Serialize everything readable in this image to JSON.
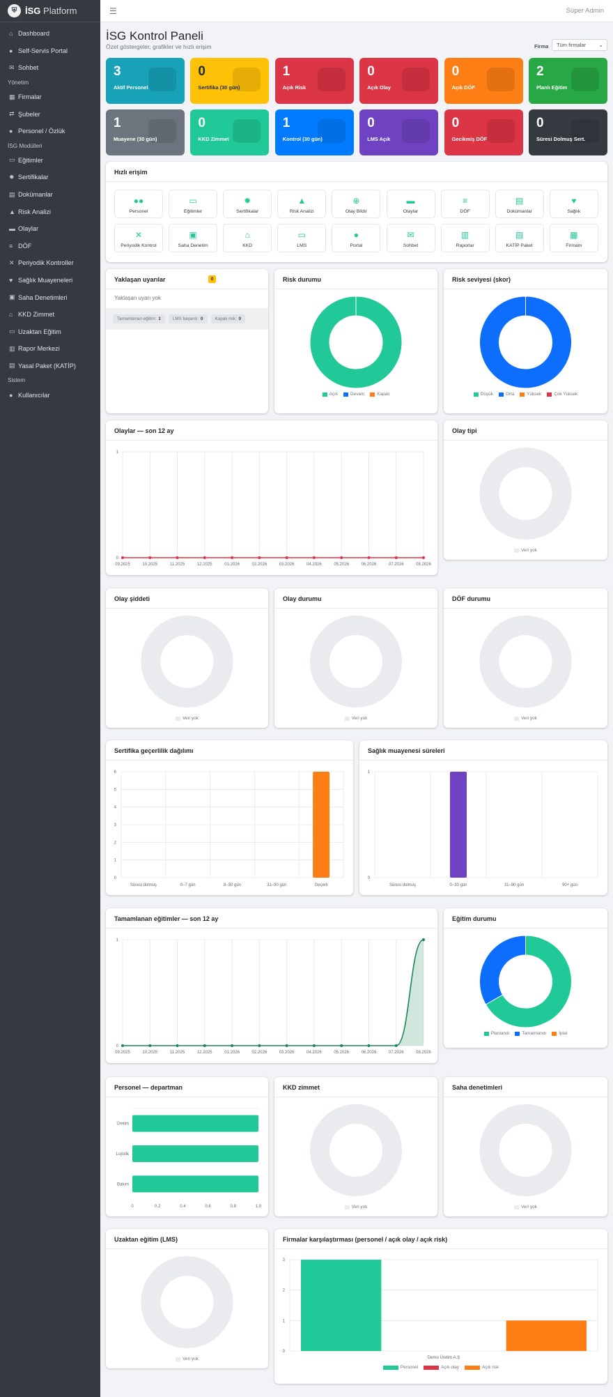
{
  "brand": {
    "icon": "shield-logo",
    "prefix": "İSG",
    "name": "Platform"
  },
  "topbar": {
    "menu_icon": "☰",
    "user": "Süper Admin"
  },
  "sidebar": {
    "items": [
      {
        "type": "item",
        "icon": "⌂",
        "label": "Dashboard"
      },
      {
        "type": "item",
        "icon": "●",
        "label": "Self-Servis Portal"
      },
      {
        "type": "item",
        "icon": "✉",
        "label": "Sohbet"
      },
      {
        "type": "header",
        "label": "Yönetim"
      },
      {
        "type": "item",
        "icon": "▦",
        "label": "Firmalar"
      },
      {
        "type": "item",
        "icon": "⇄",
        "label": "Şubeler"
      },
      {
        "type": "item",
        "icon": "●",
        "label": "Personel / Özlük"
      },
      {
        "type": "header",
        "label": "İSG Modülleri"
      },
      {
        "type": "item",
        "icon": "▭",
        "label": "Eğitimler"
      },
      {
        "type": "item",
        "icon": "✹",
        "label": "Sertifikalar"
      },
      {
        "type": "item",
        "icon": "▤",
        "label": "Dokümanlar"
      },
      {
        "type": "item",
        "icon": "▲",
        "label": "Risk Analizi"
      },
      {
        "type": "item",
        "icon": "▬",
        "label": "Olaylar"
      },
      {
        "type": "item",
        "icon": "≡",
        "label": "DÖF"
      },
      {
        "type": "item",
        "icon": "✕",
        "label": "Periyodik Kontroller"
      },
      {
        "type": "item",
        "icon": "♥",
        "label": "Sağlık Muayeneleri"
      },
      {
        "type": "item",
        "icon": "▣",
        "label": "Saha Denetimleri"
      },
      {
        "type": "item",
        "icon": "⌂",
        "label": "KKD Zimmet"
      },
      {
        "type": "item",
        "icon": "▭",
        "label": "Uzaktan Eğitim"
      },
      {
        "type": "item",
        "icon": "▥",
        "label": "Rapor Merkezi"
      },
      {
        "type": "item",
        "icon": "▤",
        "label": "Yasal Paket (KATİP)"
      },
      {
        "type": "header",
        "label": "Sistem"
      },
      {
        "type": "item",
        "icon": "●",
        "label": "Kullanıcılar"
      }
    ]
  },
  "header": {
    "title": "İSG Kontrol Paneli",
    "subtitle": "Özet göstergeler, grafikler ve hızlı erişim",
    "firma_label": "Firma",
    "firma_value": "Tüm firmalar"
  },
  "kpis": [
    {
      "value": "3",
      "label": "Aktif Personel",
      "color": "#17a2b8"
    },
    {
      "value": "0",
      "label": "Sertifika (30 gün)",
      "color": "#ffc107",
      "dark": true
    },
    {
      "value": "1",
      "label": "Açık Risk",
      "color": "#dc3545"
    },
    {
      "value": "0",
      "label": "Açık Olay",
      "color": "#dc3545"
    },
    {
      "value": "0",
      "label": "Açık DÖF",
      "color": "#fd7e14"
    },
    {
      "value": "2",
      "label": "Planlı Eğitim",
      "color": "#28a745"
    },
    {
      "value": "1",
      "label": "Muayene (30 gün)",
      "color": "#6c757d"
    },
    {
      "value": "0",
      "label": "KKD Zimmet",
      "color": "#20c997"
    },
    {
      "value": "1",
      "label": "Kontrol (30 gün)",
      "color": "#007bff"
    },
    {
      "value": "0",
      "label": "LMS Açık",
      "color": "#6f42c1"
    },
    {
      "value": "0",
      "label": "Gecikmiş DÖF",
      "color": "#dc3545"
    },
    {
      "value": "0",
      "label": "Süresi Dolmuş Sert.",
      "color": "#343a40"
    }
  ],
  "quick": {
    "title": "Hızlı erişim",
    "items": [
      {
        "icon": "people-icon",
        "glyph": "●●",
        "label": "Personel"
      },
      {
        "icon": "training-icon",
        "glyph": "▭",
        "label": "Eğitimler"
      },
      {
        "icon": "certificate-icon",
        "glyph": "✹",
        "label": "Sertifikalar"
      },
      {
        "icon": "warning-icon",
        "glyph": "▲",
        "label": "Risk Analizi"
      },
      {
        "icon": "plus-circle-icon",
        "glyph": "⊕",
        "label": "Olay Bildir"
      },
      {
        "icon": "truck-icon",
        "glyph": "▬",
        "label": "Olaylar"
      },
      {
        "icon": "list-icon",
        "glyph": "≡",
        "label": "DÖF"
      },
      {
        "icon": "file-icon",
        "glyph": "▤",
        "label": "Dokümanlar"
      },
      {
        "icon": "heartbeat-icon",
        "glyph": "♥",
        "label": "Sağlık"
      },
      {
        "icon": "tools-icon",
        "glyph": "✕",
        "label": "Periyodik Kontrol"
      },
      {
        "icon": "clipboard-check-icon",
        "glyph": "▣",
        "label": "Saha Denetim"
      },
      {
        "icon": "hardhat-icon",
        "glyph": "⌂",
        "label": "KKD"
      },
      {
        "icon": "laptop-icon",
        "glyph": "▭",
        "label": "LMS"
      },
      {
        "icon": "user-portal-icon",
        "glyph": "●",
        "label": "Portal"
      },
      {
        "icon": "chat-icon",
        "glyph": "✉",
        "label": "Sohbet"
      },
      {
        "icon": "chart-icon",
        "glyph": "▥",
        "label": "Raporlar"
      },
      {
        "icon": "legal-file-icon",
        "glyph": "▤",
        "label": "KATİP Paket"
      },
      {
        "icon": "building-icon",
        "glyph": "▦",
        "label": "Firmam"
      }
    ]
  },
  "upcoming": {
    "title": "Yaklaşan uyarılar",
    "badge": "0",
    "empty": "Yaklaşan uyarı yok",
    "chips": [
      {
        "label": "Tamamlanan eğitim:",
        "value": "1"
      },
      {
        "label": "LMS başarılı:",
        "value": "0"
      },
      {
        "label": "Kapalı risk:",
        "value": "0"
      }
    ]
  },
  "empty_label": "Veri yok",
  "chart_data": [
    {
      "id": "risk_durum",
      "type": "pie",
      "title": "Risk durumu",
      "labels": [
        "Açık",
        "Devam",
        "Kapalı"
      ],
      "values": [
        1,
        0,
        0
      ],
      "colors": [
        "#20c997",
        "#0d6efd",
        "#fd7e14"
      ]
    },
    {
      "id": "risk_seviye",
      "type": "pie",
      "title": "Risk seviyesi (skor)",
      "labels": [
        "Düşük",
        "Orta",
        "Yüksek",
        "Çok Yüksek"
      ],
      "values": [
        0,
        1,
        0,
        0
      ],
      "colors": [
        "#20c997",
        "#0d6efd",
        "#fd7e14",
        "#dc3545"
      ]
    },
    {
      "id": "olaylar",
      "type": "line",
      "title": "Olaylar — son 12 ay",
      "x": [
        "09.2025",
        "10.2025",
        "11.2025",
        "12.2025",
        "01.2026",
        "02.2026",
        "03.2026",
        "04.2026",
        "05.2026",
        "06.2026",
        "07.2026",
        "08.2026"
      ],
      "values": [
        0,
        0,
        0,
        0,
        0,
        0,
        0,
        0,
        0,
        0,
        0,
        0
      ],
      "ylim": [
        0,
        1
      ],
      "yticks": [
        0,
        1
      ],
      "color": "#dc3545",
      "fill": false
    },
    {
      "id": "olay_tipi",
      "type": "pie",
      "title": "Olay tipi",
      "labels": [],
      "values": []
    },
    {
      "id": "olay_siddeti",
      "type": "pie",
      "title": "Olay şiddeti",
      "labels": [],
      "values": []
    },
    {
      "id": "olay_durumu",
      "type": "pie",
      "title": "Olay durumu",
      "labels": [],
      "values": []
    },
    {
      "id": "dof_durumu",
      "type": "pie",
      "title": "DÖF durumu",
      "labels": [],
      "values": []
    },
    {
      "id": "sertifika",
      "type": "bar",
      "title": "Sertifika geçerlilik dağılımı",
      "categories": [
        "Süresi dolmuş",
        "0–7 gün",
        "8–30 gün",
        "31–90 gün",
        "Geçerli"
      ],
      "values": [
        0,
        0,
        0,
        0,
        6
      ],
      "ylim": [
        0,
        6
      ],
      "yticks": [
        0,
        1,
        2,
        3,
        4,
        5,
        6
      ],
      "color": "#fd7e14"
    },
    {
      "id": "saglik",
      "type": "bar",
      "title": "Sağlık muayenesi süreleri",
      "categories": [
        "Süresi dolmuş",
        "0–30 gün",
        "31–90 gün",
        "90+ gün"
      ],
      "values": [
        0,
        1,
        0,
        0
      ],
      "ylim": [
        0,
        1
      ],
      "yticks": [
        0,
        1
      ],
      "color": "#6f42c1"
    },
    {
      "id": "egitimler",
      "type": "area",
      "title": "Tamamlanan eğitimler — son 12 ay",
      "x": [
        "09.2025",
        "10.2025",
        "11.2025",
        "12.2025",
        "01.2026",
        "02.2026",
        "03.2026",
        "04.2026",
        "05.2026",
        "06.2026",
        "07.2026",
        "08.2026"
      ],
      "values": [
        0,
        0,
        0,
        0,
        0,
        0,
        0,
        0,
        0,
        0,
        0,
        1
      ],
      "ylim": [
        0,
        1
      ],
      "yticks": [
        0,
        1
      ],
      "color": "#198754",
      "fill": true
    },
    {
      "id": "egitim_durumu",
      "type": "pie",
      "title": "Eğitim durumu",
      "labels": [
        "Planlandı",
        "Tamamlandı",
        "İptal"
      ],
      "values": [
        2,
        1,
        0
      ],
      "colors": [
        "#20c997",
        "#0d6efd",
        "#fd7e14"
      ]
    },
    {
      "id": "personel_dept",
      "type": "bar",
      "orientation": "horizontal",
      "title": "Personel — departman",
      "categories": [
        "Üretim",
        "Lojistik",
        "Bakım"
      ],
      "values": [
        1,
        1,
        1
      ],
      "xlim": [
        0,
        1
      ],
      "xticks": [
        "0",
        "0.2",
        "0.4",
        "0.6",
        "0.8",
        "1.0"
      ],
      "color": "#20c997"
    },
    {
      "id": "kkd",
      "type": "pie",
      "title": "KKD zimmet",
      "labels": [],
      "values": []
    },
    {
      "id": "saha",
      "type": "pie",
      "title": "Saha denetimleri",
      "labels": [],
      "values": []
    },
    {
      "id": "lms",
      "type": "pie",
      "title": "Uzaktan eğitim (LMS)",
      "labels": [],
      "values": []
    },
    {
      "id": "firmalar",
      "type": "bar",
      "title": "Firmalar karşılaştırması (personel / açık olay / açık risk)",
      "categories": [
        "Demo Üretim A.Ş"
      ],
      "series": [
        {
          "name": "Personel",
          "values": [
            3
          ],
          "color": "#20c997"
        },
        {
          "name": "Açık olay",
          "values": [
            0
          ],
          "color": "#dc3545"
        },
        {
          "name": "Açık risk",
          "values": [
            1
          ],
          "color": "#fd7e14"
        }
      ],
      "ylim": [
        0,
        3
      ],
      "yticks": [
        0,
        1,
        2,
        3
      ]
    }
  ]
}
